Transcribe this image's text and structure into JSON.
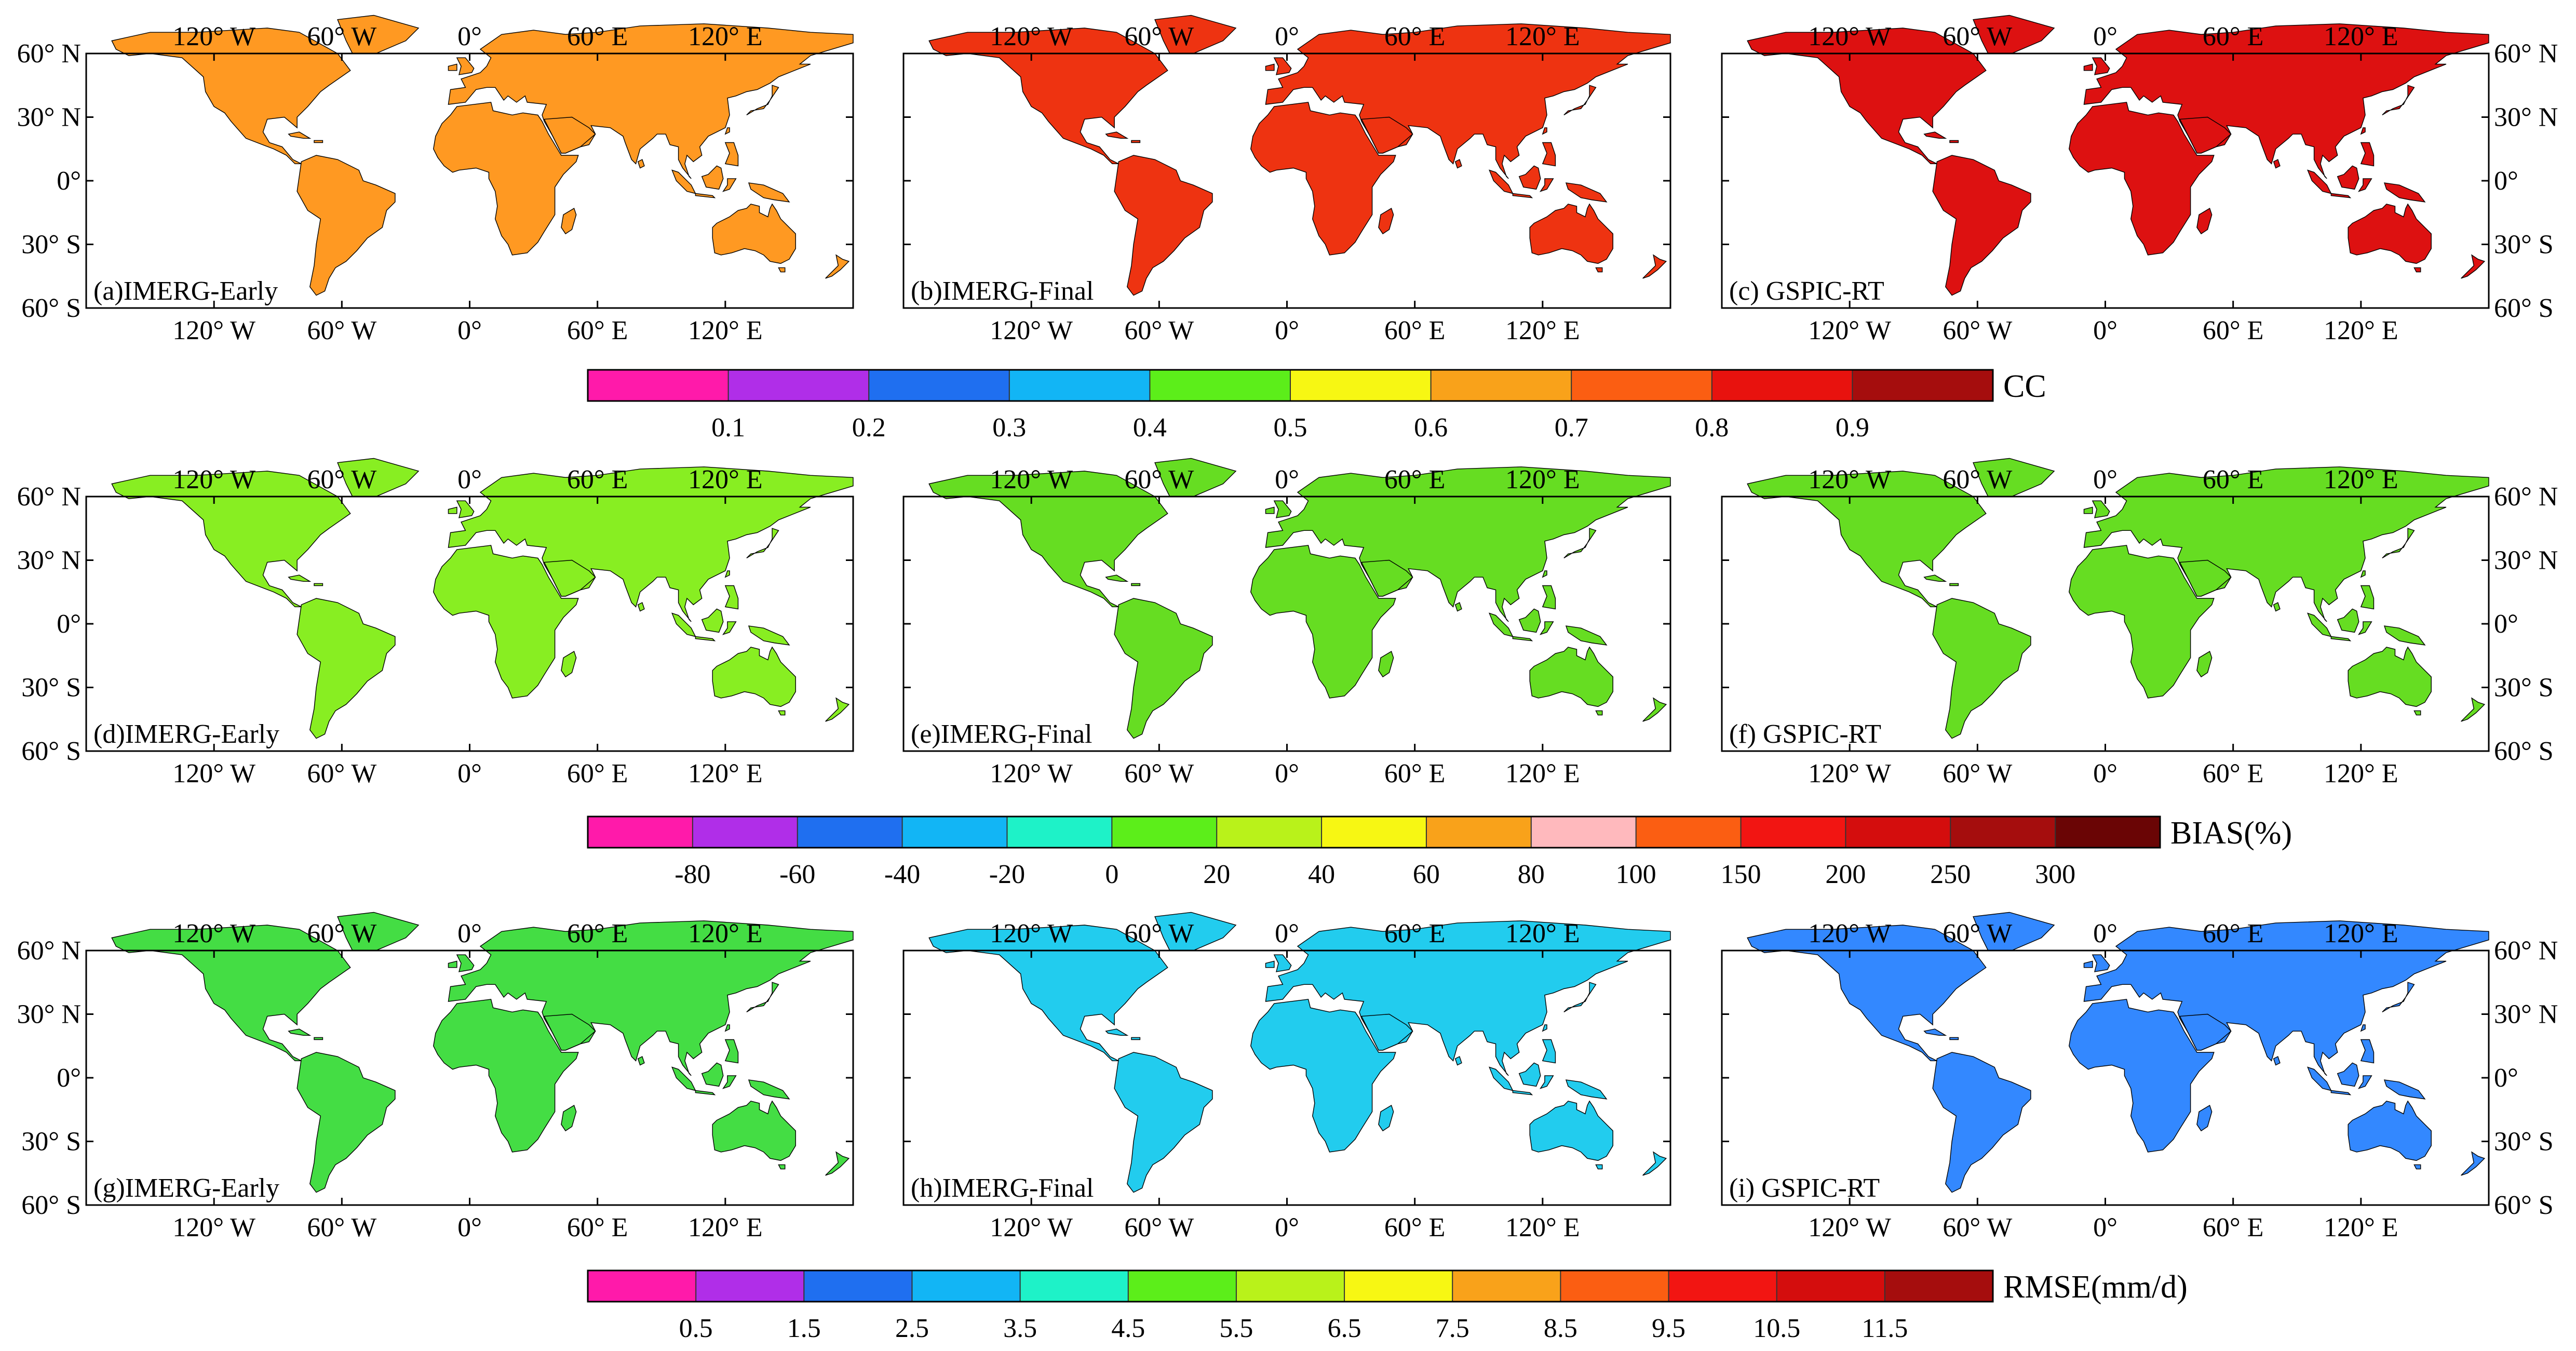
{
  "lon_ticks": [
    {
      "value": -120,
      "label": "120° W"
    },
    {
      "value": -60,
      "label": "60° W"
    },
    {
      "value": 0,
      "label": "0°"
    },
    {
      "value": 60,
      "label": "60° E"
    },
    {
      "value": 120,
      "label": "120° E"
    }
  ],
  "lat_ticks": [
    {
      "value": 60,
      "label": "60° N"
    },
    {
      "value": 30,
      "label": "30° N"
    },
    {
      "value": 0,
      "label": "0°"
    },
    {
      "value": -30,
      "label": "30° S"
    },
    {
      "value": -60,
      "label": "60° S"
    }
  ],
  "map_extent": {
    "lon": [
      -180,
      180
    ],
    "lat": [
      -60,
      60
    ]
  },
  "rows": [
    {
      "metric": "CC",
      "panels": [
        {
          "id": "a",
          "label": "(a)IMERG-Early",
          "left_axis": true,
          "right_axis": false,
          "palette": [
            "#ff9922",
            "#ffdd11",
            "#ee5511",
            "#88dd22",
            "#ff66cc",
            "#33aaff",
            "#cc2211"
          ]
        },
        {
          "id": "b",
          "label": "(b)IMERG-Final",
          "left_axis": false,
          "right_axis": false,
          "palette": [
            "#ee3311",
            "#ff9922",
            "#ffdd11",
            "#88dd22",
            "#cc22ee",
            "#dd1111",
            "#33aaff"
          ]
        },
        {
          "id": "c",
          "label": "(c) GSPIC-RT",
          "left_axis": false,
          "right_axis": true,
          "palette": [
            "#dd1111",
            "#cc1111",
            "#ee3311",
            "#aa0000",
            "#ff5511",
            "#dd1111"
          ]
        }
      ],
      "colorbar": {
        "colors": [
          "#ff1aaa",
          "#b02ee8",
          "#1f6ff0",
          "#12b5f5",
          "#5cee1a",
          "#f7f713",
          "#f9a21a",
          "#fb5e12",
          "#e8120e",
          "#a50d0d"
        ],
        "ticks": [
          "0.1",
          "0.2",
          "0.3",
          "0.4",
          "0.5",
          "0.6",
          "0.7",
          "0.8",
          "0.9"
        ],
        "label": "CC"
      }
    },
    {
      "metric": "BIAS",
      "panels": [
        {
          "id": "d",
          "label": "(d)IMERG-Early",
          "left_axis": true,
          "right_axis": false,
          "palette": [
            "#88ee22",
            "#55dd22",
            "#ccee22",
            "#bb1111",
            "#ffee11",
            "#11ccdd",
            "#7a0000"
          ]
        },
        {
          "id": "e",
          "label": "(e)IMERG-Final",
          "left_axis": false,
          "right_axis": false,
          "palette": [
            "#66dd22",
            "#22ccbb",
            "#bbee22",
            "#22bbee",
            "#aa1111",
            "#ffee11"
          ]
        },
        {
          "id": "f",
          "label": "(f) GSPIC-RT",
          "left_axis": false,
          "right_axis": true,
          "palette": [
            "#66dd22",
            "#22ccbb",
            "#bbee22",
            "#22bbee",
            "#aa1111",
            "#44dd44"
          ]
        }
      ],
      "colorbar": {
        "colors": [
          "#ff1aaa",
          "#b02ee8",
          "#1f6ff0",
          "#12b5f5",
          "#1ef2c8",
          "#5cee1a",
          "#b9f21a",
          "#f7f713",
          "#f9a21a",
          "#ffb9bd",
          "#fb5e12",
          "#f21512",
          "#d40d0d",
          "#a50d0d",
          "#6a0505"
        ],
        "ticks": [
          "-80",
          "-60",
          "-40",
          "-20",
          "0",
          "20",
          "40",
          "60",
          "80",
          "100",
          "150",
          "200",
          "250",
          "300"
        ],
        "label": "BIAS(%)"
      }
    },
    {
      "metric": "RMSE",
      "panels": [
        {
          "id": "g",
          "label": "(g)IMERG-Early",
          "left_axis": true,
          "right_axis": false,
          "palette": [
            "#44dd44",
            "#22ccee",
            "#aaee22",
            "#ffee11",
            "#aa0000",
            "#ff6611",
            "#cc22ee"
          ]
        },
        {
          "id": "h",
          "label": "(h)IMERG-Final",
          "left_axis": false,
          "right_axis": false,
          "palette": [
            "#22ccee",
            "#44dd44",
            "#ee22cc",
            "#aaee22",
            "#aa0000",
            "#3388ff"
          ]
        },
        {
          "id": "i",
          "label": "(i) GSPIC-RT",
          "left_axis": false,
          "right_axis": true,
          "palette": [
            "#3388ff",
            "#22ccee",
            "#ee22cc",
            "#44dd44",
            "#aa22ee",
            "#ffee11"
          ]
        }
      ],
      "colorbar": {
        "colors": [
          "#ff1aaa",
          "#b02ee8",
          "#1f6ff0",
          "#12b5f5",
          "#1ef2c8",
          "#5cee1a",
          "#b9f21a",
          "#f7f713",
          "#f9a21a",
          "#fb5e12",
          "#f21512",
          "#d40d0d",
          "#a50d0d"
        ],
        "ticks": [
          "0.5",
          "1.5",
          "2.5",
          "3.5",
          "4.5",
          "5.5",
          "6.5",
          "7.5",
          "8.5",
          "9.5",
          "10.5",
          "11.5"
        ],
        "label": "RMSE(mm/d)"
      }
    }
  ]
}
